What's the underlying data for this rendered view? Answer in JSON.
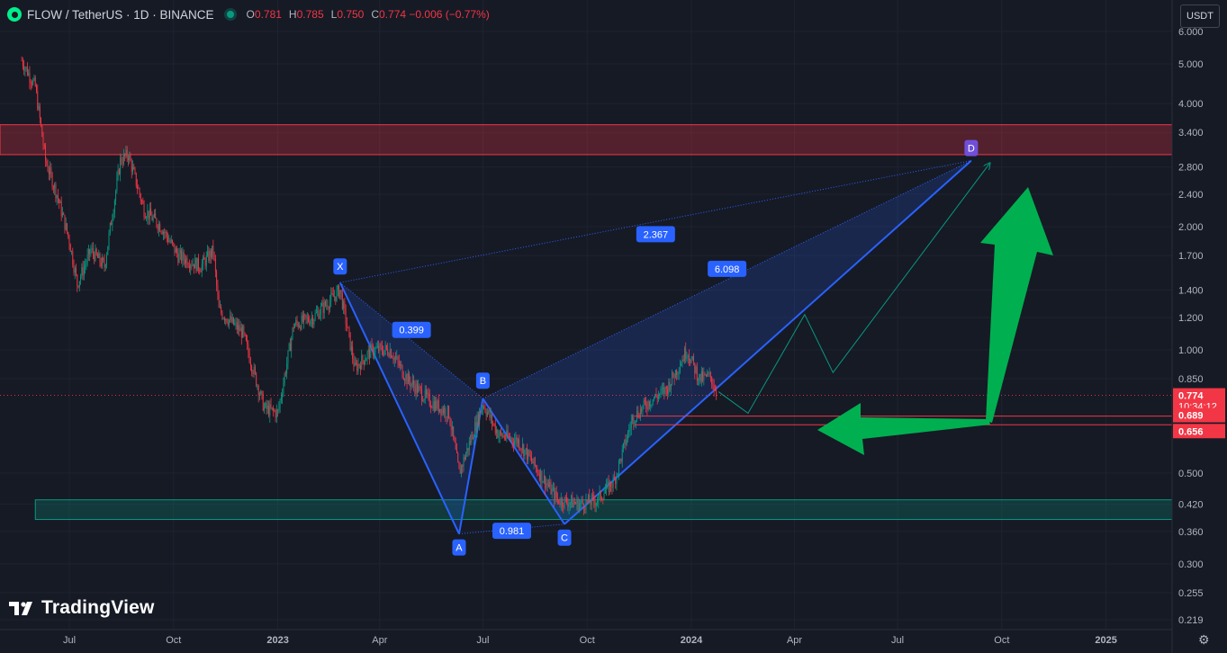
{
  "header": {
    "title": "FLOW / TetherUS · 1D · BINANCE",
    "ohlc": [
      {
        "k": "O",
        "v": "0.781"
      },
      {
        "k": "H",
        "v": "0.785"
      },
      {
        "k": "L",
        "v": "0.750"
      },
      {
        "k": "C",
        "v": "0.774 −0.006 (−0.77%)"
      }
    ]
  },
  "currency": "USDT",
  "brand": "TradingView",
  "icons": {
    "symbol": "flow-coin-icon",
    "status": "market-status-dot",
    "settings": "gear-icon"
  },
  "colors": {
    "bg": "#161a25",
    "up": "#089981",
    "down": "#f23645",
    "pattern": "#2962ff",
    "resistance": "#f23645",
    "support": "#089981",
    "arrow": "#00b050"
  },
  "chart_data": {
    "type": "candlestick",
    "scale": "log",
    "ylim": [
      0.205,
      6.3
    ],
    "y_ticks": [
      "6.000",
      "5.000",
      "4.000",
      "3.400",
      "2.800",
      "2.400",
      "2.000",
      "1.700",
      "1.400",
      "1.200",
      "1.000",
      "0.850",
      "0.500",
      "0.420",
      "0.360",
      "0.300",
      "0.255",
      "0.219"
    ],
    "x_ticks": [
      "Jul",
      "Oct",
      "2023",
      "Apr",
      "Jul",
      "Oct",
      "2024",
      "Apr",
      "Jul",
      "Oct",
      "2025"
    ],
    "price_labels": [
      {
        "value": 0.774,
        "text": "0.774",
        "sub": "10:34:12"
      },
      {
        "value": 0.689,
        "text": "0.689"
      },
      {
        "value": 0.656,
        "text": "0.656"
      }
    ],
    "zones": [
      {
        "name": "resistance",
        "from": 3.0,
        "to": 3.55
      },
      {
        "name": "support",
        "from": 0.385,
        "to": 0.43
      }
    ],
    "harmonic_points": [
      {
        "label": "X",
        "date": "2023-02-25",
        "value": 1.46
      },
      {
        "label": "A",
        "date": "2023-06-10",
        "value": 0.355
      },
      {
        "label": "B",
        "date": "2023-07-01",
        "value": 0.76
      },
      {
        "label": "C",
        "date": "2023-09-11",
        "value": 0.375
      },
      {
        "label": "D",
        "date": "2024-09-04",
        "value": 2.9
      }
    ],
    "ratios": [
      {
        "text": "0.399",
        "between": "XB"
      },
      {
        "text": "0.981",
        "between": "AC"
      },
      {
        "text": "6.098",
        "between": "BD"
      },
      {
        "text": "2.367",
        "between": "XD"
      }
    ],
    "candle_path": [
      [
        "2022-05-20",
        5.1
      ],
      [
        "2022-06-01",
        4.4
      ],
      [
        "2022-06-10",
        2.9
      ],
      [
        "2022-06-20",
        2.4
      ],
      [
        "2022-07-01",
        1.85
      ],
      [
        "2022-07-08",
        1.45
      ],
      [
        "2022-07-20",
        1.75
      ],
      [
        "2022-08-01",
        1.6
      ],
      [
        "2022-08-15",
        2.9
      ],
      [
        "2022-08-22",
        3.0
      ],
      [
        "2022-09-05",
        2.2
      ],
      [
        "2022-09-20",
        2.0
      ],
      [
        "2022-10-05",
        1.7
      ],
      [
        "2022-10-25",
        1.6
      ],
      [
        "2022-11-05",
        1.75
      ],
      [
        "2022-11-10",
        1.25
      ],
      [
        "2022-12-01",
        1.1
      ],
      [
        "2022-12-20",
        0.72
      ],
      [
        "2023-01-01",
        0.7
      ],
      [
        "2023-01-15",
        1.15
      ],
      [
        "2023-02-01",
        1.2
      ],
      [
        "2023-02-25",
        1.4
      ],
      [
        "2023-03-10",
        0.9
      ],
      [
        "2023-03-25",
        1.0
      ],
      [
        "2023-04-10",
        1.0
      ],
      [
        "2023-04-25",
        0.85
      ],
      [
        "2023-05-15",
        0.75
      ],
      [
        "2023-06-01",
        0.7
      ],
      [
        "2023-06-10",
        0.5
      ],
      [
        "2023-06-20",
        0.6
      ],
      [
        "2023-07-01",
        0.74
      ],
      [
        "2023-07-15",
        0.62
      ],
      [
        "2023-08-01",
        0.6
      ],
      [
        "2023-08-20",
        0.5
      ],
      [
        "2023-09-05",
        0.43
      ],
      [
        "2023-09-25",
        0.42
      ],
      [
        "2023-10-10",
        0.43
      ],
      [
        "2023-10-25",
        0.48
      ],
      [
        "2023-11-10",
        0.68
      ],
      [
        "2023-11-25",
        0.75
      ],
      [
        "2023-12-10",
        0.8
      ],
      [
        "2023-12-28",
        1.0
      ],
      [
        "2024-01-08",
        0.85
      ],
      [
        "2024-01-18",
        0.86
      ],
      [
        "2024-01-24",
        0.774
      ]
    ],
    "projection": [
      [
        "2024-01-25",
        0.79
      ],
      [
        "2024-02-20",
        0.7
      ],
      [
        "2024-04-10",
        1.22
      ],
      [
        "2024-05-05",
        0.88
      ],
      [
        "2024-09-20",
        2.85
      ]
    ]
  }
}
